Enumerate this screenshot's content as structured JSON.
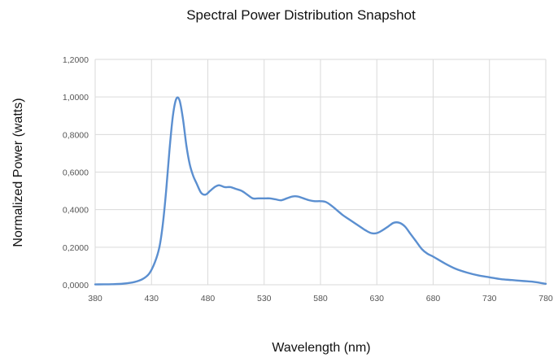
{
  "chart_data": {
    "type": "line",
    "title": "Spectral Power Distribution Snapshot",
    "xlabel": "Wavelength (nm)",
    "ylabel": "Normalized Power (watts)",
    "xlim": [
      380,
      780
    ],
    "ylim": [
      0,
      1.2
    ],
    "x_ticks": [
      380,
      430,
      480,
      530,
      580,
      630,
      680,
      730,
      780
    ],
    "y_ticks": [
      0,
      0.2,
      0.4,
      0.6,
      0.8,
      1.0,
      1.2
    ],
    "x_tick_labels": [
      "380",
      "430",
      "480",
      "530",
      "580",
      "630",
      "680",
      "730",
      "780"
    ],
    "y_tick_labels": [
      "0,0000",
      "0,2000",
      "0,4000",
      "0,6000",
      "0,8000",
      "1,0000",
      "1,2000"
    ],
    "grid": "vertical and horizontal",
    "series": [
      {
        "color": "#5b8fd0",
        "x": [
          380,
          395,
          405,
          415,
          422,
          428,
          433,
          437,
          440,
          443,
          446,
          449,
          452,
          455,
          458,
          461,
          464,
          467,
          470,
          474,
          478,
          482,
          486,
          490,
          495,
          500,
          505,
          510,
          515,
          520,
          525,
          530,
          535,
          540,
          545,
          550,
          555,
          560,
          565,
          570,
          575,
          580,
          585,
          590,
          595,
          600,
          605,
          610,
          615,
          620,
          625,
          630,
          635,
          640,
          645,
          650,
          655,
          660,
          665,
          670,
          675,
          680,
          690,
          700,
          710,
          720,
          730,
          740,
          750,
          760,
          770,
          780
        ],
        "y": [
          0.002,
          0.003,
          0.006,
          0.015,
          0.03,
          0.06,
          0.12,
          0.2,
          0.32,
          0.5,
          0.72,
          0.9,
          0.99,
          0.98,
          0.88,
          0.74,
          0.64,
          0.58,
          0.54,
          0.49,
          0.48,
          0.5,
          0.52,
          0.53,
          0.52,
          0.52,
          0.51,
          0.5,
          0.48,
          0.46,
          0.46,
          0.46,
          0.46,
          0.455,
          0.45,
          0.46,
          0.47,
          0.47,
          0.46,
          0.45,
          0.445,
          0.445,
          0.44,
          0.42,
          0.395,
          0.37,
          0.35,
          0.33,
          0.31,
          0.29,
          0.275,
          0.275,
          0.29,
          0.31,
          0.33,
          0.33,
          0.31,
          0.27,
          0.23,
          0.19,
          0.165,
          0.15,
          0.115,
          0.085,
          0.065,
          0.05,
          0.04,
          0.03,
          0.025,
          0.02,
          0.015,
          0.005
        ]
      }
    ]
  }
}
